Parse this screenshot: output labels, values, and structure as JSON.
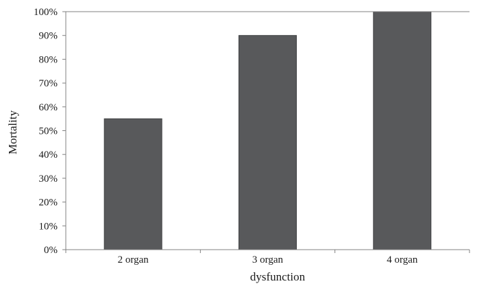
{
  "chart_data": {
    "type": "bar",
    "categories": [
      "2 organ",
      "3 organ",
      "4 organ"
    ],
    "values": [
      55,
      90,
      100
    ],
    "xlabel": "dysfunction",
    "ylabel": "Mortality",
    "ylim": [
      0,
      100
    ],
    "yticks": [
      "0%",
      "10%",
      "20%",
      "30%",
      "40%",
      "50%",
      "60%",
      "70%",
      "80%",
      "90%",
      "100%"
    ],
    "grid": false,
    "legend": "none",
    "bar_color": "#58595b"
  }
}
